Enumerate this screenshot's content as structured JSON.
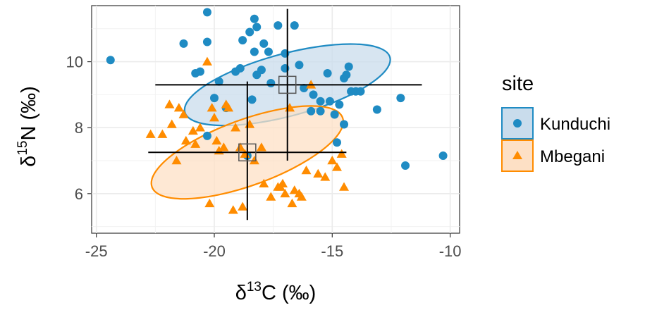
{
  "chart_data": {
    "type": "scatter",
    "xlabel": {
      "pre": "δ",
      "sup": "13",
      "post": "C (‰)"
    },
    "ylabel": {
      "pre": "δ",
      "sup": "15",
      "post": "N (‰)"
    },
    "xlim": [
      -25.2,
      -9.6
    ],
    "ylim": [
      4.8,
      11.7
    ],
    "x_ticks": [
      -25,
      -20,
      -15,
      -10
    ],
    "x_tick_labels": [
      "-25",
      "-20",
      "-15",
      "-10"
    ],
    "y_ticks": [
      6,
      8,
      10
    ],
    "y_tick_labels": [
      "6",
      "8",
      "10"
    ],
    "grid": true,
    "legend": {
      "title": "site",
      "position": "right"
    },
    "series": [
      {
        "name": "Kunduchi",
        "marker": "circle",
        "color": "#1f8bc3",
        "fill": "#c9dcec",
        "mean": [
          -16.9,
          9.3
        ],
        "errorbar_x": [
          -22.5,
          -11.2
        ],
        "errorbar_y": [
          7.0,
          11.6
        ],
        "ellipse": {
          "cx": -16.9,
          "cy": 9.3,
          "rx": 4.5,
          "ry": 0.9,
          "angle_deg": -15
        },
        "points": [
          [
            -24.4,
            10.05
          ],
          [
            -20.3,
            11.5
          ],
          [
            -21.3,
            10.55
          ],
          [
            -20.6,
            9.7
          ],
          [
            -20.8,
            9.65
          ],
          [
            -20.3,
            10.6
          ],
          [
            -20.0,
            8.9
          ],
          [
            -20.3,
            7.75
          ],
          [
            -19.8,
            9.4
          ],
          [
            -19.1,
            9.7
          ],
          [
            -18.9,
            9.8
          ],
          [
            -18.8,
            10.65
          ],
          [
            -18.5,
            10.9
          ],
          [
            -18.3,
            11.3
          ],
          [
            -18.2,
            11.05
          ],
          [
            -18.3,
            10.3
          ],
          [
            -18.2,
            9.6
          ],
          [
            -18.0,
            9.75
          ],
          [
            -17.9,
            10.55
          ],
          [
            -17.7,
            10.3
          ],
          [
            -17.6,
            9.35
          ],
          [
            -17.3,
            11.1
          ],
          [
            -17.0,
            10.25
          ],
          [
            -17.0,
            9.8
          ],
          [
            -16.6,
            11.1
          ],
          [
            -16.4,
            9.9
          ],
          [
            -16.2,
            9.2
          ],
          [
            -15.9,
            8.5
          ],
          [
            -15.8,
            9.0
          ],
          [
            -15.5,
            8.8
          ],
          [
            -15.5,
            8.5
          ],
          [
            -15.2,
            9.65
          ],
          [
            -15.1,
            8.8
          ],
          [
            -14.9,
            8.4
          ],
          [
            -14.8,
            7.55
          ],
          [
            -14.5,
            9.5
          ],
          [
            -14.4,
            9.6
          ],
          [
            -14.3,
            9.85
          ],
          [
            -14.2,
            9.1
          ],
          [
            -14.0,
            9.1
          ],
          [
            -13.8,
            9.1
          ],
          [
            -14.5,
            8.1
          ],
          [
            -14.7,
            8.7
          ],
          [
            -13.1,
            8.55
          ],
          [
            -12.1,
            8.9
          ],
          [
            -11.9,
            6.85
          ],
          [
            -10.3,
            7.15
          ],
          [
            -18.6,
            7.15
          ],
          [
            -18.4,
            8.85
          ],
          [
            -19.5,
            8.6
          ]
        ]
      },
      {
        "name": "Mbegani",
        "marker": "triangle",
        "color": "#ff8c00",
        "fill": "#fde0c5",
        "mean": [
          -18.6,
          7.25
        ],
        "errorbar_x": [
          -22.8,
          -14.4
        ],
        "errorbar_y": [
          5.2,
          9.4
        ],
        "ellipse": {
          "cx": -18.6,
          "cy": 7.25,
          "rx": 4.3,
          "ry": 0.95,
          "angle_deg": -20
        },
        "points": [
          [
            -22.7,
            7.8
          ],
          [
            -22.2,
            7.8
          ],
          [
            -21.8,
            8.1
          ],
          [
            -21.9,
            8.7
          ],
          [
            -21.5,
            8.6
          ],
          [
            -21.3,
            8.4
          ],
          [
            -21.6,
            7.0
          ],
          [
            -21.2,
            7.6
          ],
          [
            -20.9,
            7.9
          ],
          [
            -20.6,
            8.0
          ],
          [
            -20.8,
            7.5
          ],
          [
            -20.3,
            10.0
          ],
          [
            -20.1,
            8.6
          ],
          [
            -20.0,
            8.3
          ],
          [
            -19.9,
            7.6
          ],
          [
            -19.8,
            7.3
          ],
          [
            -19.6,
            7.4
          ],
          [
            -19.5,
            8.7
          ],
          [
            -19.4,
            8.6
          ],
          [
            -19.1,
            8.0
          ],
          [
            -18.9,
            7.4
          ],
          [
            -18.7,
            7.2
          ],
          [
            -18.5,
            8.1
          ],
          [
            -18.3,
            7.0
          ],
          [
            -18.0,
            7.4
          ],
          [
            -17.9,
            6.3
          ],
          [
            -17.6,
            5.9
          ],
          [
            -17.3,
            6.2
          ],
          [
            -17.2,
            6.2
          ],
          [
            -17.0,
            6.0
          ],
          [
            -16.8,
            8.6
          ],
          [
            -16.6,
            6.1
          ],
          [
            -16.4,
            6.0
          ],
          [
            -16.1,
            6.7
          ],
          [
            -15.9,
            9.3
          ],
          [
            -15.6,
            6.6
          ],
          [
            -15.3,
            6.5
          ],
          [
            -15.0,
            7.0
          ],
          [
            -14.8,
            6.8
          ],
          [
            -14.6,
            7.2
          ],
          [
            -16.7,
            5.7
          ],
          [
            -16.3,
            5.9
          ],
          [
            -20.2,
            5.7
          ],
          [
            -19.2,
            5.5
          ],
          [
            -18.8,
            5.6
          ],
          [
            -14.5,
            6.2
          ],
          [
            -17.1,
            6.3
          ]
        ]
      }
    ]
  }
}
